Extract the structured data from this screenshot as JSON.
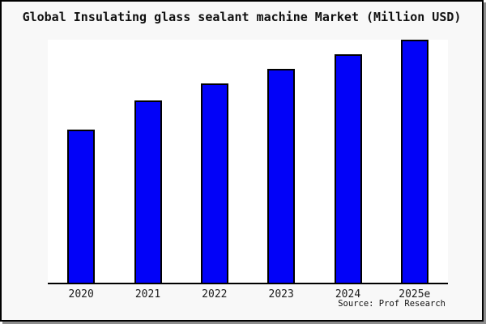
{
  "window": {
    "title": "Global Insulating glass sealant machine Market (Million USD)"
  },
  "chart_data": {
    "type": "bar",
    "title": "Global Insulating glass sealant machine Market (Million USD)",
    "categories": [
      "2020",
      "2021",
      "2022",
      "2023",
      "2024",
      "2025e"
    ],
    "values": [
      63,
      75,
      82,
      88,
      94,
      100
    ],
    "ylim": [
      0,
      100
    ],
    "xlabel": "",
    "ylabel": "",
    "value_axis_labels": "none",
    "grid": false,
    "legend": false,
    "source_label": "Source: Prof Research"
  },
  "colors": {
    "bar_fill": "#0202f8",
    "bar_border": "#000000",
    "axis_line": "#000000",
    "frame_border": "#000000",
    "figure_bg": "#f8f8f8",
    "plot_bg": "#ffffff",
    "shadow": "#8e8e8e",
    "title_text": "#101010",
    "tick_text": "#1a1a1a"
  }
}
